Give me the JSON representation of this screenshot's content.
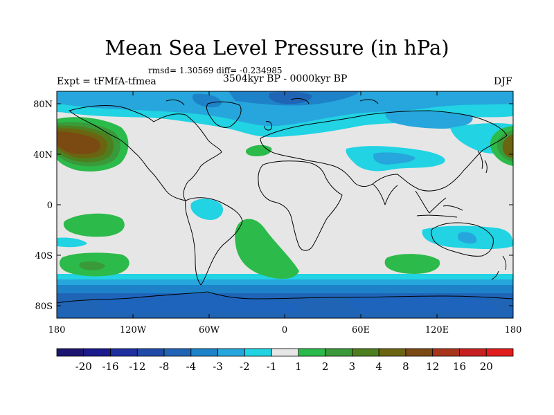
{
  "title": "Mean Sea Level Pressure (in hPa)",
  "stats": "rmsd= 1.30569 diff= -0.234985",
  "experiment": "Expt = tFMfA-tfmea",
  "period": "3504kyr BP - 0000kyr BP",
  "season": "DJF",
  "lat_ticks": [
    "80N",
    "40N",
    "0",
    "40S",
    "80S"
  ],
  "lon_ticks": [
    "180",
    "120W",
    "60W",
    "0",
    "60E",
    "120E",
    "180"
  ],
  "colorbar": {
    "labels": [
      "-20",
      "-16",
      "-12",
      "-8",
      "-4",
      "-3",
      "-2",
      "-1",
      "1",
      "2",
      "3",
      "4",
      "8",
      "12",
      "16",
      "20"
    ],
    "colors": [
      "#1d1470",
      "#1a1a8c",
      "#1f2fa0",
      "#1e4aa8",
      "#1f64b5",
      "#1e82c9",
      "#26a6dc",
      "#21d3e3",
      "#e6e6e6",
      "#2cba4a",
      "#3a9a3a",
      "#4e7f1e",
      "#6b6410",
      "#7a4a12",
      "#a8341a",
      "#c82020",
      "#e01c1c"
    ]
  },
  "map_colors": {
    "background": "#e6e6e6",
    "neg1": "#21d3e3",
    "neg2": "#26a6dc",
    "neg3": "#1e82c9",
    "neg4": "#1f64b5",
    "pos1": "#2cba4a",
    "pos2": "#3a9a3a",
    "pos3": "#4e7f1e",
    "pos4": "#6b6410",
    "pos5": "#7a4a12"
  }
}
